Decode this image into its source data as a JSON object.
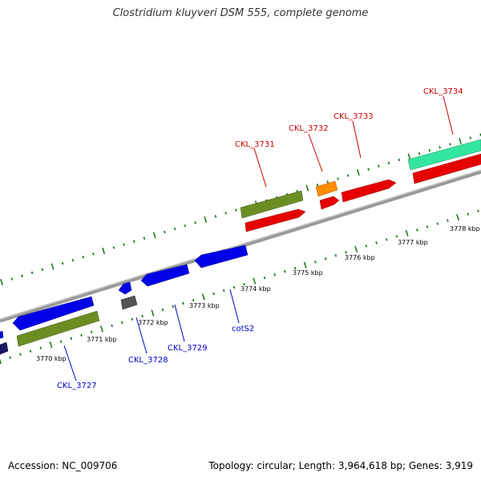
{
  "title": "Clostridium kluyveri DSM 555, complete genome",
  "footer": {
    "accession": "Accession: NC_009706",
    "stats": "Topology: circular; Length: 3,964,618 bp; Genes: 3,919"
  },
  "colors": {
    "forward": "#cc0000",
    "reverse": "#0000cc",
    "backbone": "#888888",
    "tick": "#1f7a1f"
  },
  "scale": {
    "labels": [
      "3770 kbp",
      "3771 kbp",
      "3772 kbp",
      "3773 kbp",
      "3774 kbp",
      "3775 kbp",
      "3776 kbp",
      "3777 kbp",
      "3778 kbp"
    ]
  },
  "gene_labels": {
    "forward": [
      "CKL_3731",
      "CKL_3732",
      "CKL_3733",
      "CKL_3734"
    ],
    "reverse": [
      "CKL_3727",
      "CKL_3728",
      "CKL_3729",
      "cotS2"
    ]
  }
}
